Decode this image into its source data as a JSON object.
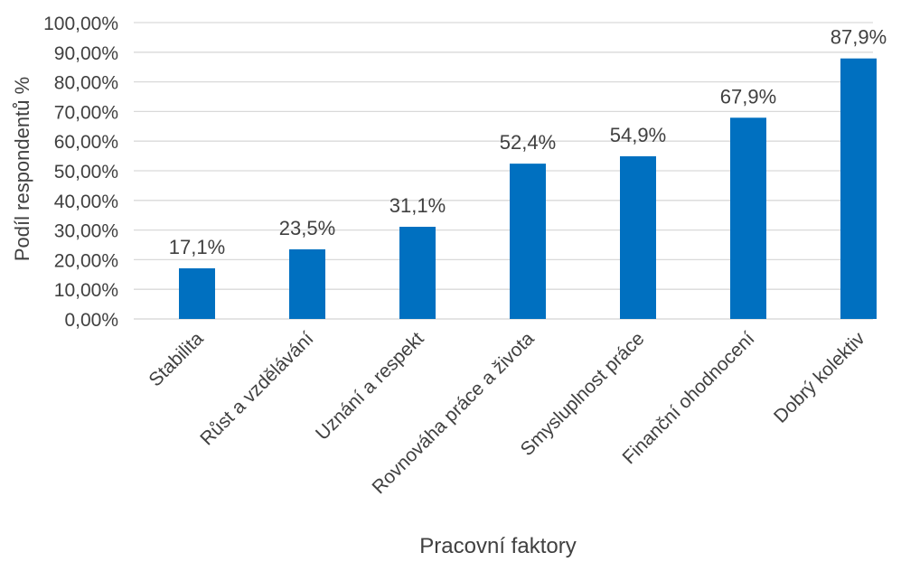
{
  "chart_data": {
    "type": "bar",
    "title": "",
    "xlabel": "Pracovní faktory",
    "ylabel": "Podíl respondentů %",
    "categories": [
      "Stabilita",
      "Růst a vzdělávání",
      "Uznání a respekt",
      "Rovnováha práce a života",
      "Smysluplnost práce",
      "Finanční ohodnocení",
      "Dobrý kolektiv"
    ],
    "values": [
      17.1,
      23.5,
      31.1,
      52.4,
      54.9,
      67.9,
      87.9
    ],
    "data_labels": [
      "17,1%",
      "23,5%",
      "31,1%",
      "52,4%",
      "54,9%",
      "67,9%",
      "87,9%"
    ],
    "ylim": [
      0,
      100
    ],
    "yticks": [
      0,
      10,
      20,
      30,
      40,
      50,
      60,
      70,
      80,
      90,
      100
    ],
    "ytick_labels": [
      "0,00%",
      "10,00%",
      "20,00%",
      "30,00%",
      "40,00%",
      "50,00%",
      "60,00%",
      "70,00%",
      "80,00%",
      "90,00%",
      "100,00%"
    ],
    "grid": true,
    "legend": "none",
    "colors": {
      "bar": "#0070c0",
      "grid": "#d9d9d9",
      "text": "#404040"
    }
  }
}
